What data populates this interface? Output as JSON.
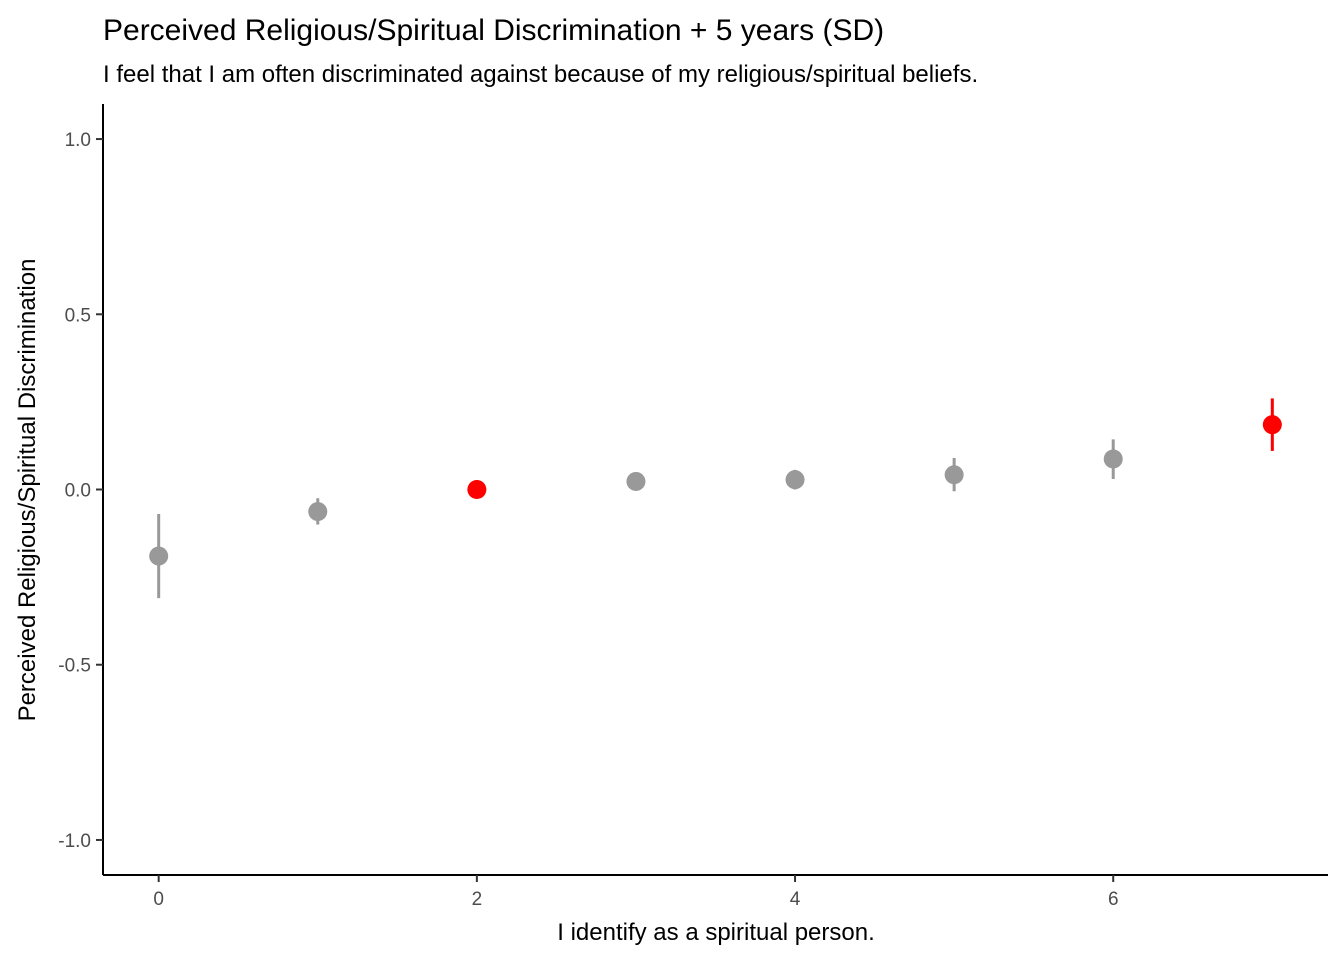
{
  "chart_data": {
    "type": "scatter",
    "title": "Perceived Religious/Spiritual Discrimination + 5 years (SD)",
    "subtitle": "I feel that I am often discriminated against because of my religious/spiritual beliefs.",
    "xlabel": "I identify as a spiritual person.",
    "ylabel": "Perceived Religious/Spiritual  Discrimination",
    "xlim": [
      -0.35,
      7.35
    ],
    "ylim": [
      -1.1,
      1.1
    ],
    "x_ticks": [
      0,
      2,
      4,
      6
    ],
    "x_tick_labels": [
      "0",
      "2",
      "4",
      "6"
    ],
    "y_ticks": [
      -1.0,
      -0.5,
      0.0,
      0.5,
      1.0
    ],
    "y_tick_labels": [
      "-1.0",
      "-0.5",
      "0.0",
      "0.5",
      "1.0"
    ],
    "grid": false,
    "colors": {
      "default": "#999999",
      "highlight": "#ff0000"
    },
    "points": [
      {
        "x": 0,
        "y": -0.19,
        "lower": -0.31,
        "upper": -0.07,
        "highlight": false
      },
      {
        "x": 1,
        "y": -0.063,
        "lower": -0.1,
        "upper": -0.025,
        "highlight": false
      },
      {
        "x": 2,
        "y": 0.0,
        "lower": 0.0,
        "upper": 0.0,
        "highlight": true
      },
      {
        "x": 3,
        "y": 0.023,
        "lower": 0.015,
        "upper": 0.031,
        "highlight": false
      },
      {
        "x": 4,
        "y": 0.028,
        "lower": 0.0,
        "upper": 0.056,
        "highlight": false
      },
      {
        "x": 5,
        "y": 0.042,
        "lower": -0.005,
        "upper": 0.09,
        "highlight": false
      },
      {
        "x": 6,
        "y": 0.087,
        "lower": 0.03,
        "upper": 0.143,
        "highlight": false
      },
      {
        "x": 7,
        "y": 0.185,
        "lower": 0.11,
        "upper": 0.26,
        "highlight": true
      }
    ]
  }
}
